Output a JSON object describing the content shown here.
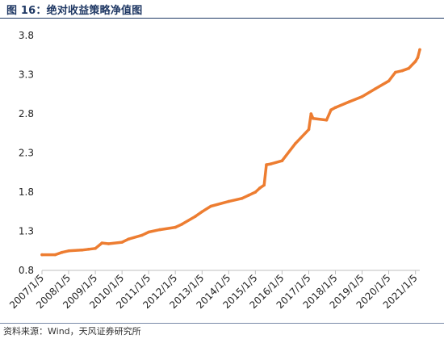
{
  "header": {
    "title": "图 16：绝对收益策略净值图"
  },
  "footer": {
    "source": "资料来源：Wind，天风证券研究所"
  },
  "colors": {
    "line": "#ed7d31",
    "axis": "#bfbfbf",
    "title": "#1f3864"
  },
  "chart_data": {
    "type": "line",
    "title": "",
    "xlabel": "",
    "ylabel": "",
    "ylim": [
      0.8,
      3.8
    ],
    "yticks": [
      "0.8",
      "1.3",
      "1.8",
      "2.3",
      "2.8",
      "3.3",
      "3.8"
    ],
    "xticks": [
      "2007/1/5",
      "2008/1/5",
      "2009/1/5",
      "2010/1/5",
      "2011/1/5",
      "2012/1/5",
      "2013/1/5",
      "2014/1/5",
      "2015/1/5",
      "2016/1/5",
      "2017/1/5",
      "2018/1/5",
      "2019/1/5",
      "2020/1/5",
      "2021/1/5"
    ],
    "grid": false,
    "legend": "none",
    "series": [
      {
        "x": [
          "2007/1/5",
          "2007/7/5",
          "2007/10/5",
          "2008/1/5",
          "2008/7/5",
          "2008/10/5",
          "2009/1/5",
          "2009/4/5",
          "2009/7/5",
          "2010/1/5",
          "2010/4/5",
          "2010/10/5",
          "2011/1/5",
          "2011/6/5",
          "2012/1/5",
          "2012/4/5",
          "2012/10/5",
          "2013/1/5",
          "2013/5/5",
          "2014/1/5",
          "2014/7/5",
          "2014/10/5",
          "2015/1/5",
          "2015/3/5",
          "2015/5/5",
          "2015/6/5",
          "2015/8/5",
          "2016/1/5",
          "2016/7/5",
          "2017/1/5",
          "2017/2/5",
          "2017/3/5",
          "2017/9/5",
          "2017/11/5",
          "2018/1/5",
          "2018/7/5",
          "2019/1/5",
          "2019/7/5",
          "2020/1/5",
          "2020/4/5",
          "2020/7/5",
          "2020/10/5",
          "2021/1/5",
          "2021/2/5",
          "2021/3/5"
        ],
        "values": [
          1.0,
          1.0,
          1.03,
          1.05,
          1.06,
          1.07,
          1.08,
          1.15,
          1.14,
          1.16,
          1.2,
          1.25,
          1.29,
          1.32,
          1.35,
          1.39,
          1.49,
          1.55,
          1.62,
          1.68,
          1.72,
          1.76,
          1.8,
          1.85,
          1.89,
          2.15,
          2.16,
          2.2,
          2.42,
          2.6,
          2.8,
          2.74,
          2.72,
          2.85,
          2.88,
          2.95,
          3.02,
          3.12,
          3.22,
          3.33,
          3.35,
          3.38,
          3.47,
          3.52,
          3.62
        ]
      }
    ]
  }
}
